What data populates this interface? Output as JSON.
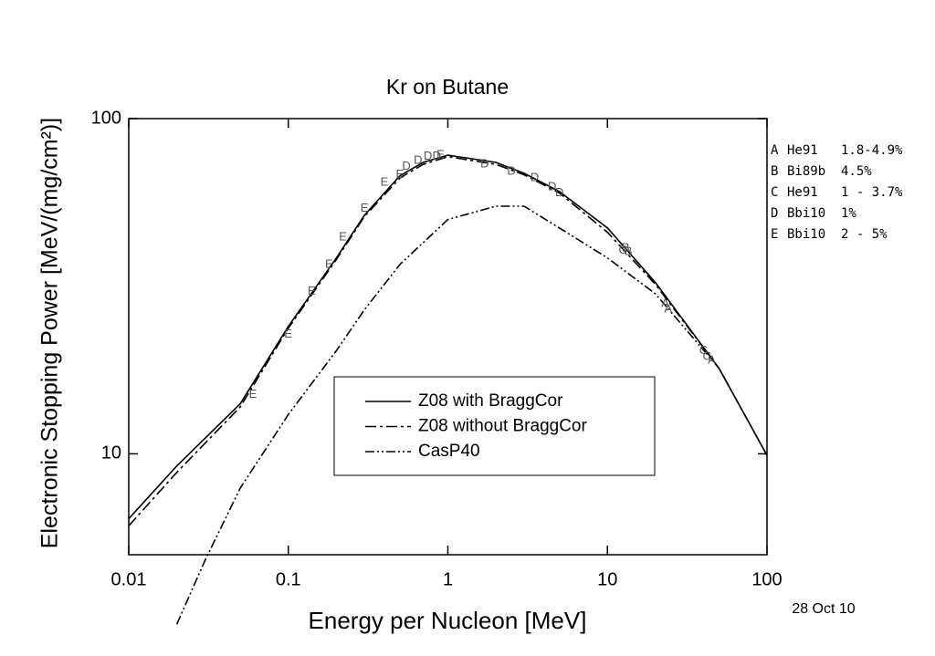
{
  "chart_data": {
    "type": "line",
    "title": "Kr on Butane",
    "x_label": "Energy per Nucleon [MeV]",
    "y_label": "Electronic Stopping Power [MeV/(mg/cm²)]",
    "date": "28 Oct 10",
    "xlog": true,
    "ylog": true,
    "xlim": [
      0.01,
      100
    ],
    "ylim": [
      5,
      100
    ],
    "xticks": [
      0.01,
      0.1,
      1,
      10,
      100
    ],
    "yticks": [
      10,
      100
    ],
    "series": [
      {
        "name": "Z08 with BraggCor",
        "type": "line",
        "dash": "solid",
        "color": "#000000",
        "x": [
          0.01,
          0.02,
          0.05,
          0.1,
          0.2,
          0.3,
          0.5,
          0.7,
          1,
          2,
          3,
          5,
          10,
          20,
          50,
          100
        ],
        "values": [
          6.4,
          9.2,
          14.1,
          24,
          38.4,
          51.5,
          67.5,
          74,
          77.8,
          74,
          68.7,
          60.6,
          47.2,
          32.4,
          18,
          9.9
        ]
      },
      {
        "name": "Z08 without BraggCor",
        "type": "line",
        "dash": "dashdot",
        "color": "#000000",
        "x": [
          0.01,
          0.02,
          0.05,
          0.1,
          0.2,
          0.3,
          0.5,
          0.7,
          1,
          2,
          3,
          5,
          10,
          20,
          50,
          100
        ],
        "values": [
          6.1,
          8.8,
          13.8,
          23.7,
          38,
          51,
          66.5,
          73,
          77,
          73,
          68,
          60,
          45.8,
          32,
          18,
          9.9
        ]
      },
      {
        "name": "CasP40",
        "type": "line",
        "dash": "dashdotdot",
        "color": "#000000",
        "x": [
          0.02,
          0.03,
          0.05,
          0.1,
          0.2,
          0.3,
          0.5,
          1,
          2,
          3,
          5,
          10,
          20,
          50
        ],
        "values": [
          3.1,
          4.8,
          7.9,
          13.1,
          20.3,
          26.9,
          36.7,
          50,
          54.8,
          54.8,
          47.2,
          38.4,
          30,
          18
        ]
      },
      {
        "name": "He91   1.8-4.9%",
        "type": "scatter",
        "marker": "A",
        "color": "#555555",
        "x": [
          23,
          24,
          45
        ],
        "values": [
          28,
          27,
          19
        ]
      },
      {
        "name": "Bi89b  4.5%",
        "type": "scatter",
        "marker": "B",
        "color": "#555555",
        "x": [
          13,
          13.5
        ],
        "values": [
          41,
          40
        ]
      },
      {
        "name": "He91   1 - 3.7%",
        "type": "scatter",
        "marker": "C",
        "color": "#555555",
        "x": [
          12.5,
          40,
          42
        ],
        "values": [
          40.4,
          20.3,
          19.5
        ]
      },
      {
        "name": "Bbi10  1%",
        "type": "scatter",
        "marker": "D",
        "color": "#555555",
        "x": [
          0.55,
          0.65,
          0.75,
          0.85,
          1.7,
          2.5,
          3.5,
          4.5,
          5
        ],
        "values": [
          72,
          75,
          77,
          77,
          73,
          69.5,
          66.5,
          62.5,
          60
        ]
      },
      {
        "name": "Bbi10  2 - 5%",
        "type": "scatter",
        "marker": "E",
        "color": "#555555",
        "x": [
          0.06,
          0.1,
          0.14,
          0.18,
          0.22,
          0.3,
          0.4,
          0.5,
          0.9
        ],
        "values": [
          15,
          22.7,
          30.5,
          36.7,
          44.3,
          54,
          64.5,
          68,
          77.8
        ]
      }
    ]
  }
}
